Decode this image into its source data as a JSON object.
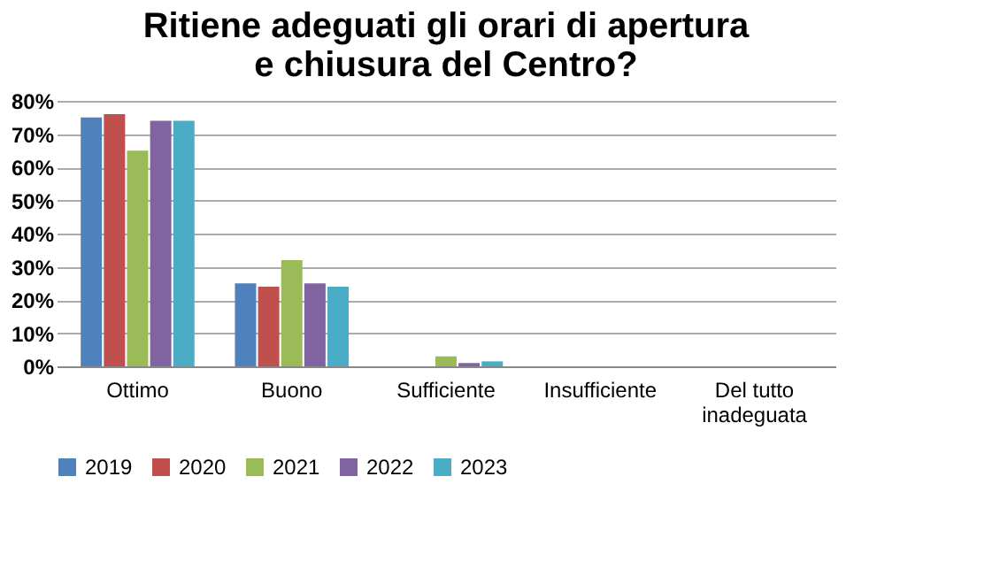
{
  "chart_data": {
    "type": "bar",
    "title": "Ritiene adeguati gli orari di apertura\ne chiusura del Centro?",
    "categories": [
      "Ottimo",
      "Buono",
      "Sufficiente",
      "Insufficiente",
      "Del tutto\ninadeguata"
    ],
    "series": [
      {
        "name": "2019",
        "color": "#4f81bd",
        "values": [
          75,
          25,
          0,
          0,
          0
        ]
      },
      {
        "name": "2020",
        "color": "#c0504d",
        "values": [
          76,
          24,
          0,
          0,
          0
        ]
      },
      {
        "name": "2021",
        "color": "#9bbb59",
        "values": [
          65,
          32,
          3,
          0,
          0
        ]
      },
      {
        "name": "2022",
        "color": "#8064a2",
        "values": [
          74,
          25,
          1,
          0,
          0
        ]
      },
      {
        "name": "2023",
        "color": "#4bacc6",
        "values": [
          74,
          24,
          1.5,
          0,
          0
        ]
      }
    ],
    "ylim": [
      0,
      80
    ],
    "yticks": [
      {
        "value": 0,
        "label": "0%"
      },
      {
        "value": 10,
        "label": "10%"
      },
      {
        "value": 20,
        "label": "20%"
      },
      {
        "value": 30,
        "label": "30%"
      },
      {
        "value": 40,
        "label": "40%"
      },
      {
        "value": 50,
        "label": "50%"
      },
      {
        "value": 60,
        "label": "60%"
      },
      {
        "value": 70,
        "label": "70%"
      },
      {
        "value": 80,
        "label": "80%"
      }
    ],
    "grid": "y",
    "legend": "bottom"
  }
}
